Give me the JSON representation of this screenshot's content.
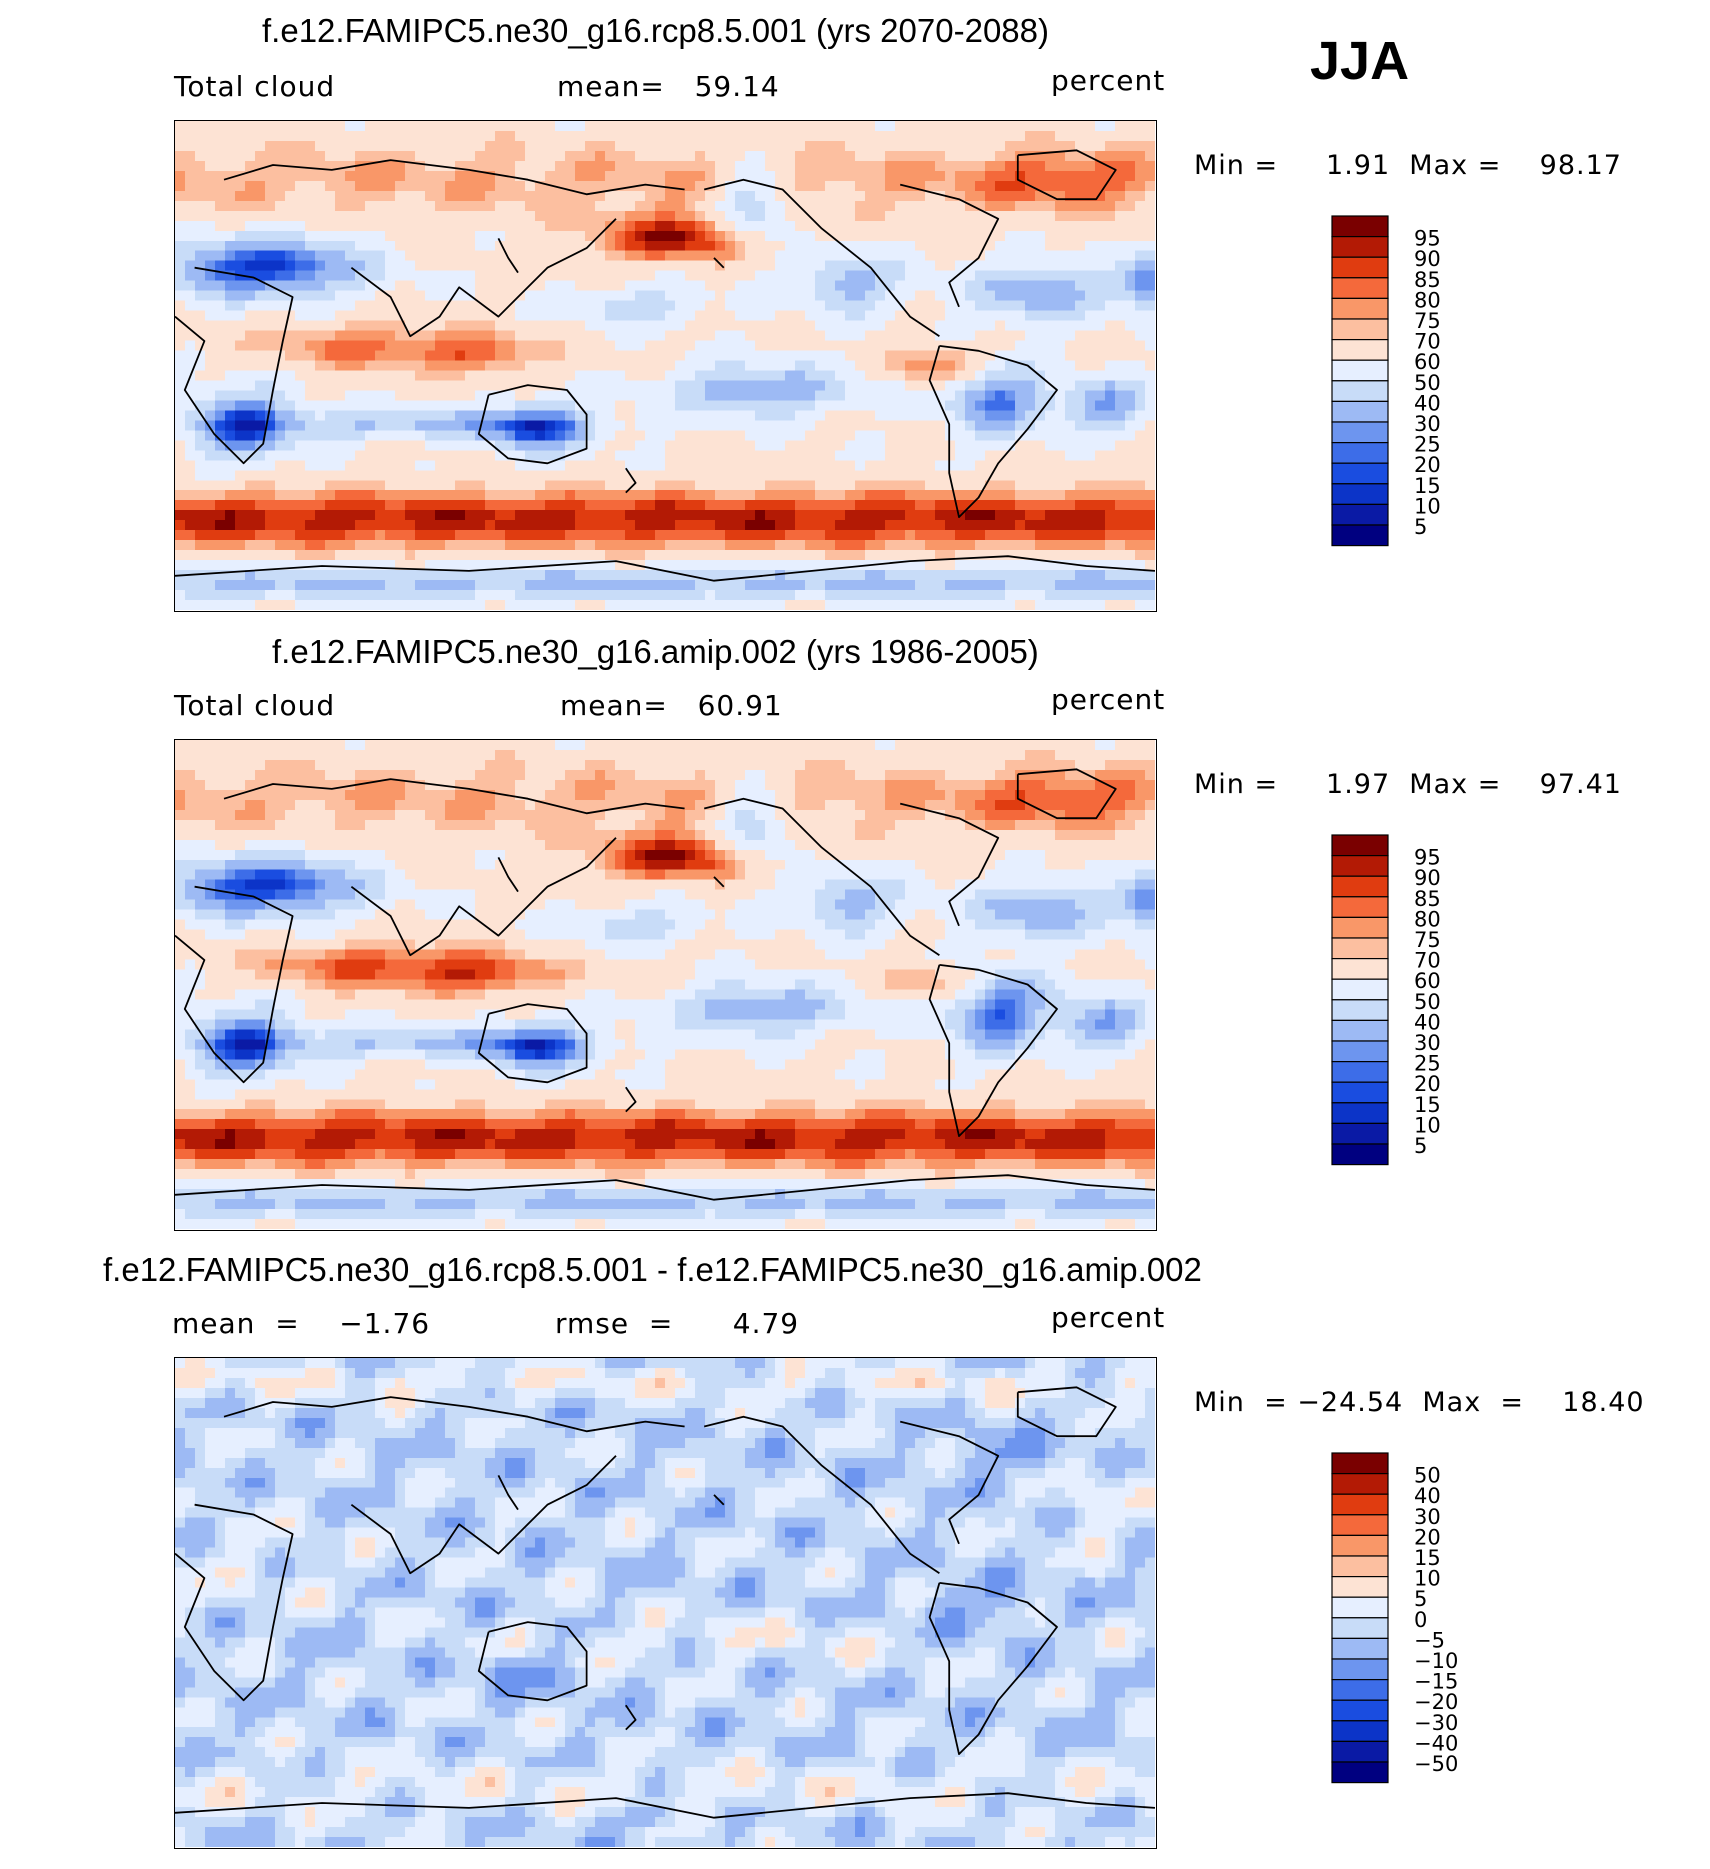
{
  "season": "JJA",
  "panels": [
    {
      "title": "f.e12.FAMIPC5.ne30_g16.rcp8.5.001 (yrs 2070-2088)",
      "left_label": "Total cloud",
      "center_label": "mean=   59.14",
      "right_label": "percent",
      "minmax": "Min =     1.91  Max =    98.17",
      "colorbar_ticks": [
        "95",
        "90",
        "85",
        "80",
        "75",
        "70",
        "60",
        "50",
        "40",
        "30",
        "25",
        "20",
        "15",
        "10",
        "5"
      ]
    },
    {
      "title": "f.e12.FAMIPC5.ne30_g16.amip.002 (yrs 1986-2005)",
      "left_label": "Total cloud",
      "center_label": "mean=   60.91",
      "right_label": "percent",
      "minmax": "Min =     1.97  Max =    97.41",
      "colorbar_ticks": [
        "95",
        "90",
        "85",
        "80",
        "75",
        "70",
        "60",
        "50",
        "40",
        "30",
        "25",
        "20",
        "15",
        "10",
        "5"
      ]
    },
    {
      "title": "f.e12.FAMIPC5.ne30_g16.rcp8.5.001 - f.e12.FAMIPC5.ne30_g16.amip.002",
      "left_label": "mean  =    −1.76",
      "center_label": "rmse  =      4.79",
      "right_label": "percent",
      "minmax": "Min  = −24.54  Max  =    18.40",
      "colorbar_ticks": [
        "50",
        "40",
        "30",
        "20",
        "15",
        "10",
        "5",
        "0",
        "−5",
        "−10",
        "−15",
        "−20",
        "−30",
        "−40",
        "−50"
      ]
    }
  ],
  "chart_data": [
    {
      "type": "heatmap",
      "title": "f.e12.FAMIPC5.ne30_g16.rcp8.5.001 (yrs 2070-2088)",
      "variable": "Total cloud",
      "units": "percent",
      "mean": 59.14,
      "min": 1.91,
      "max": 98.17,
      "contour_levels": [
        5,
        10,
        15,
        20,
        25,
        30,
        40,
        50,
        60,
        70,
        75,
        80,
        85,
        90,
        95
      ]
    },
    {
      "type": "heatmap",
      "title": "f.e12.FAMIPC5.ne30_g16.amip.002 (yrs 1986-2005)",
      "variable": "Total cloud",
      "units": "percent",
      "mean": 60.91,
      "min": 1.97,
      "max": 97.41,
      "contour_levels": [
        5,
        10,
        15,
        20,
        25,
        30,
        40,
        50,
        60,
        70,
        75,
        80,
        85,
        90,
        95
      ]
    },
    {
      "type": "heatmap",
      "title": "f.e12.FAMIPC5.ne30_g16.rcp8.5.001 - f.e12.FAMIPC5.ne30_g16.amip.002",
      "units": "percent",
      "mean": -1.76,
      "rmse": 4.79,
      "min": -24.54,
      "max": 18.4,
      "contour_levels": [
        -50,
        -40,
        -30,
        -20,
        -15,
        -10,
        -5,
        0,
        5,
        10,
        15,
        20,
        30,
        40,
        50
      ]
    }
  ],
  "colors": {
    "palette": [
      "#000080",
      "#0a1aa5",
      "#0c34c8",
      "#1a4de0",
      "#3d6de8",
      "#6d95ef",
      "#9dbaf4",
      "#c8dcf8",
      "#e6efff",
      "#fde3d4",
      "#fcbfa0",
      "#f99768",
      "#f4693b",
      "#e03c10",
      "#b31a05",
      "#7a0000"
    ]
  }
}
